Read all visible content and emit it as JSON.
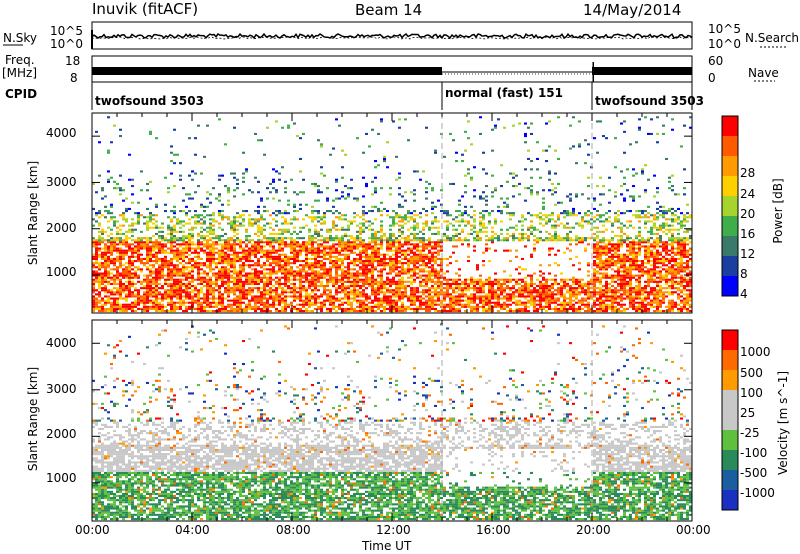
{
  "header": {
    "station": "Inuvik (fitACF)",
    "beam": "Beam 14",
    "date": "14/May/2014"
  },
  "side_labels": {
    "nsky": "N.Sky",
    "freq_top": "Freq.",
    "freq_unit": "[MHz]",
    "cpid": "CPID",
    "nsearch": "N.Search",
    "nave": "Nave"
  },
  "strip_ticks": {
    "noise_left": [
      "10^5",
      "10^0"
    ],
    "noise_right": [
      "10^5",
      "10^0"
    ],
    "freq_left": [
      "18",
      "8"
    ],
    "nave_right": [
      "60",
      "0"
    ]
  },
  "cpid_segments": [
    {
      "label": "twofsound 3503",
      "start_hour": 0,
      "end_hour": 14
    },
    {
      "label": "normal (fast) 151",
      "start_hour": 14,
      "end_hour": 20
    },
    {
      "label": "twofsound 3503",
      "start_hour": 20,
      "end_hour": 24
    }
  ],
  "time_axis": {
    "label": "Time UT",
    "ticks": [
      "00:00",
      "04:00",
      "08:00",
      "12:00",
      "16:00",
      "20:00",
      "00:00"
    ],
    "range_hours": [
      0,
      24
    ]
  },
  "chart_data": [
    {
      "type": "heatmap",
      "title": "",
      "ylabel": "Slant Range [km]",
      "y_ticks": [
        "1000",
        "2000",
        "3000",
        "4000"
      ],
      "ylim": [
        180,
        4500
      ],
      "colorbar": {
        "label": "Power [dB]",
        "ticks": [
          "28",
          "24",
          "20",
          "16",
          "12",
          "8",
          "4"
        ],
        "colors": [
          "#0000ff",
          "#1a3fa0",
          "#3a7a6a",
          "#3fae4a",
          "#a6d32c",
          "#ffd000",
          "#ff9a00",
          "#ff5a00",
          "#ff0000"
        ]
      }
    },
    {
      "type": "heatmap",
      "title": "",
      "ylabel": "Slant Range [km]",
      "y_ticks": [
        "1000",
        "2000",
        "3000",
        "4000"
      ],
      "ylim": [
        180,
        4500
      ],
      "colorbar": {
        "label": "Velocity [m s^-1]",
        "ticks": [
          "1000",
          "500",
          "100",
          "25",
          "-25",
          "-100",
          "-500",
          "-1000"
        ],
        "colors": [
          "#1a30c0",
          "#1a5ea0",
          "#2a8a5a",
          "#5fc040",
          "#c8c8c8",
          "#c8c8c8",
          "#ff9a00",
          "#ff6a00",
          "#ff0000"
        ]
      }
    }
  ]
}
